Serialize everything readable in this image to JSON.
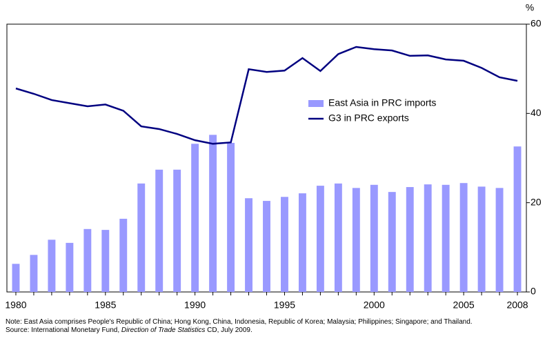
{
  "chart_data": {
    "type": "bar_line",
    "y_axis_label": "%",
    "x": [
      1980,
      1981,
      1982,
      1983,
      1984,
      1985,
      1986,
      1987,
      1988,
      1989,
      1990,
      1991,
      1992,
      1993,
      1994,
      1995,
      1996,
      1997,
      1998,
      1999,
      2000,
      2001,
      2002,
      2003,
      2004,
      2005,
      2006,
      2007,
      2008
    ],
    "series": [
      {
        "name": "East Asia in PRC imports",
        "type": "bar",
        "color": "#9999ff",
        "values": [
          6.3,
          8.3,
          11.7,
          11.0,
          14.1,
          13.9,
          16.4,
          24.3,
          27.4,
          27.4,
          33.2,
          35.2,
          33.4,
          21.0,
          20.4,
          21.3,
          22.1,
          23.8,
          24.3,
          23.3,
          24.0,
          22.4,
          23.5,
          24.1,
          24.0,
          24.4,
          23.6,
          23.3,
          32.6
        ]
      },
      {
        "name": "G3 in PRC exports",
        "type": "line",
        "color": "#000080",
        "values": [
          45.6,
          44.4,
          43.0,
          42.3,
          41.6,
          42.0,
          40.6,
          37.1,
          36.5,
          35.4,
          34.0,
          33.2,
          33.5,
          49.9,
          49.3,
          49.6,
          52.4,
          49.5,
          53.3,
          54.9,
          54.4,
          54.1,
          52.9,
          53.0,
          52.1,
          51.8,
          50.2,
          48.1,
          47.3
        ]
      }
    ],
    "xlim": [
      1979.5,
      2008.5
    ],
    "xticks": [
      1980,
      1985,
      1990,
      1995,
      2000,
      2005,
      2008
    ],
    "ylim": [
      0,
      60
    ],
    "yticks": [
      0,
      20,
      40,
      60
    ],
    "note": "Note: East Asia comprises People's Republic of China; Hong Kong, China, Indonesia, Republic of Korea; Malaysia; Philippines; Singapore; and Thailand.",
    "source": [
      "Source: International Monetary Fund, ",
      "Direction of Trade Statistics",
      " CD, July 2009."
    ]
  }
}
